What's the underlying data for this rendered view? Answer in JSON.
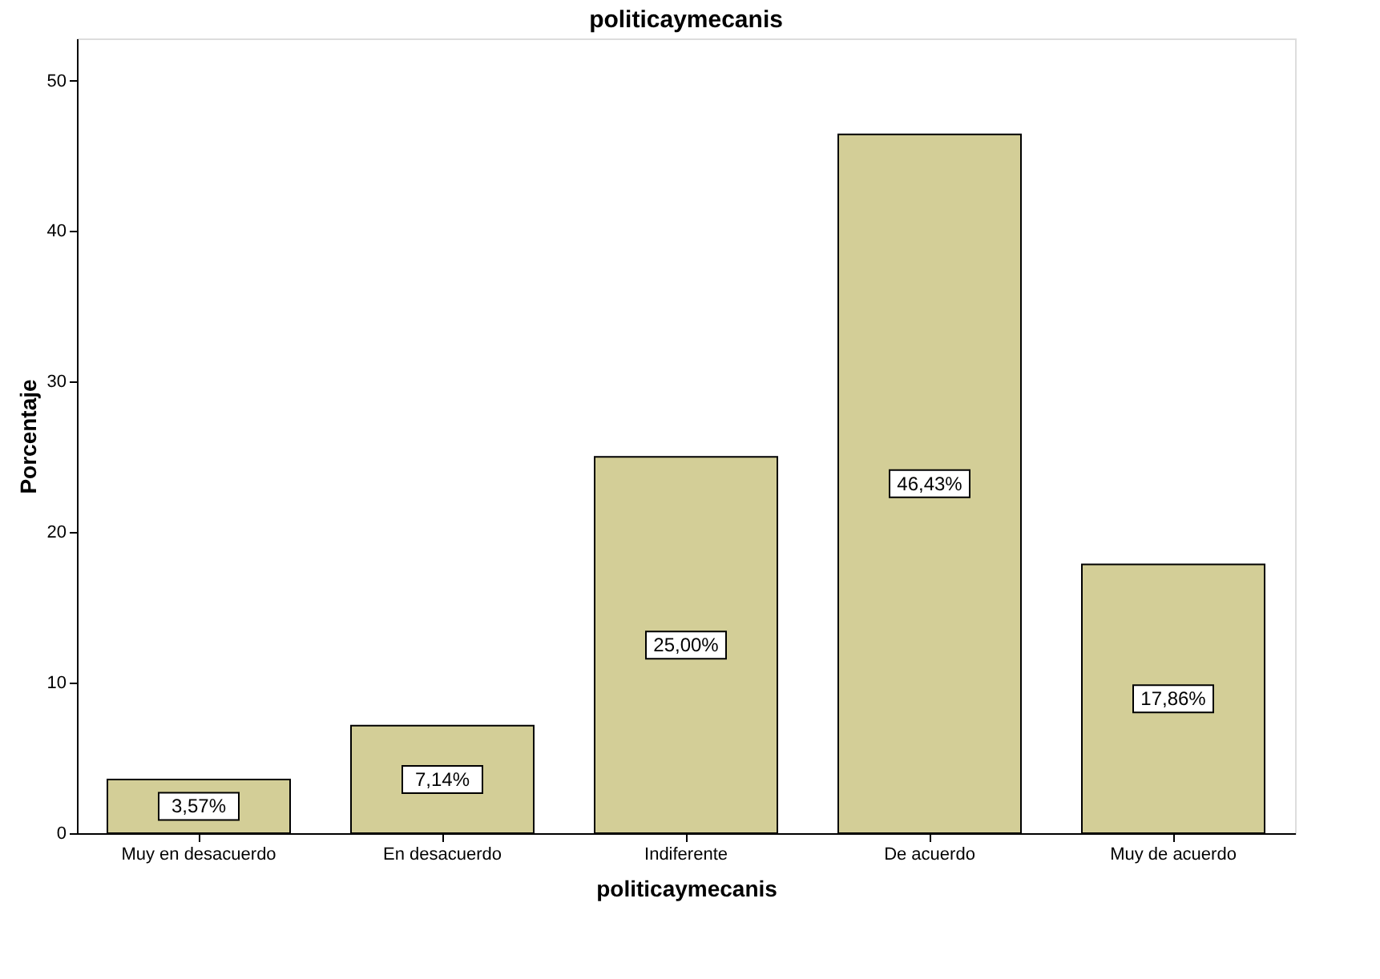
{
  "chart_data": {
    "type": "bar",
    "title": "politicaymecanis",
    "xlabel": "politicaymecanis",
    "ylabel": "Porcentaje",
    "categories": [
      "Muy en desacuerdo",
      "En desacuerdo",
      "Indiferente",
      "De acuerdo",
      "Muy de acuerdo"
    ],
    "values": [
      3.57,
      7.14,
      25.0,
      46.43,
      17.86
    ],
    "value_labels": [
      "3,57%",
      "7,14%",
      "25,00%",
      "46,43%",
      "17,86%"
    ],
    "color": "#d3ce97",
    "ylim": [
      0,
      52.8
    ],
    "yticks": [
      0,
      10,
      20,
      30,
      40,
      50
    ],
    "grid": false
  }
}
